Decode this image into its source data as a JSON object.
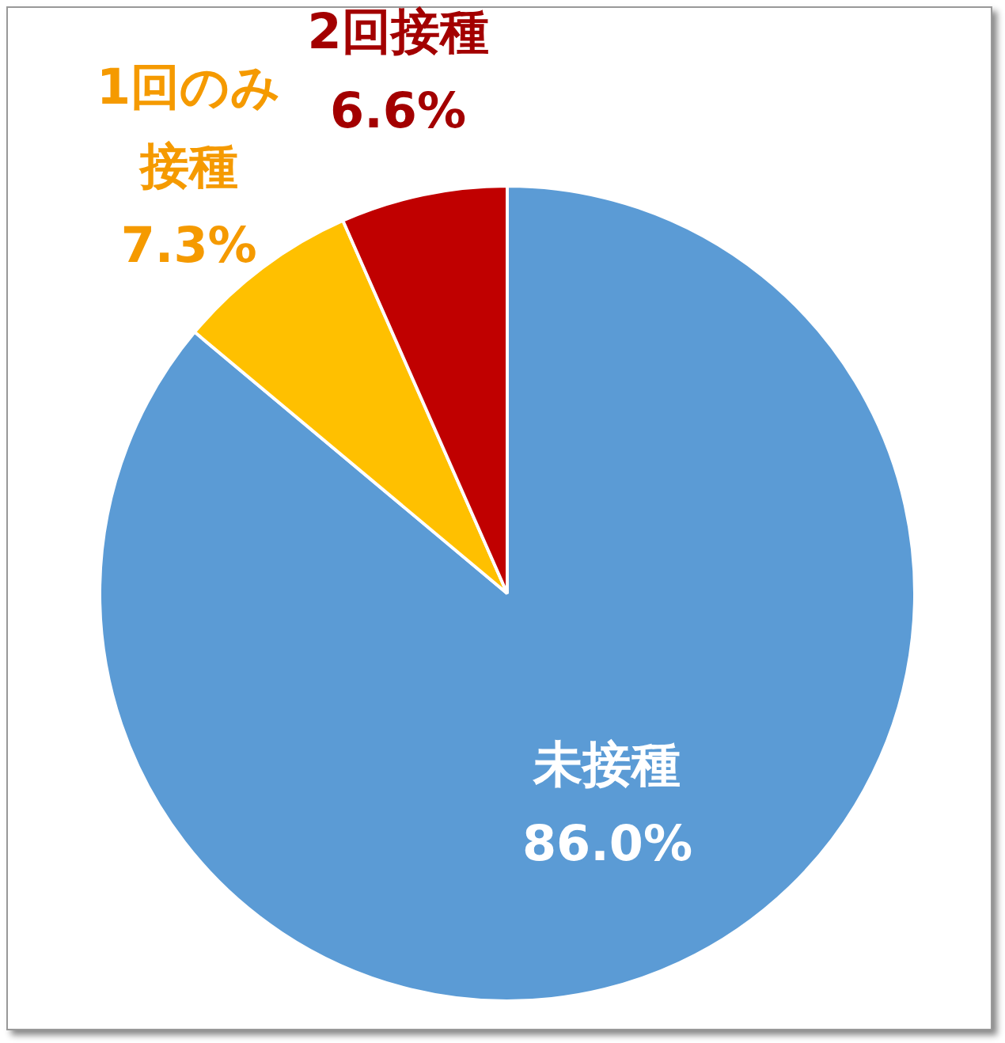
{
  "chart_data": {
    "type": "pie",
    "categories": [
      "未接種",
      "1回のみ接種",
      "2回接種"
    ],
    "values": [
      86.0,
      7.3,
      6.6
    ],
    "value_labels": [
      "86.0%",
      "7.3%",
      "6.6%"
    ],
    "colors": [
      "#5b9bd5",
      "#ffc000",
      "#c00000"
    ],
    "legend": false
  }
}
